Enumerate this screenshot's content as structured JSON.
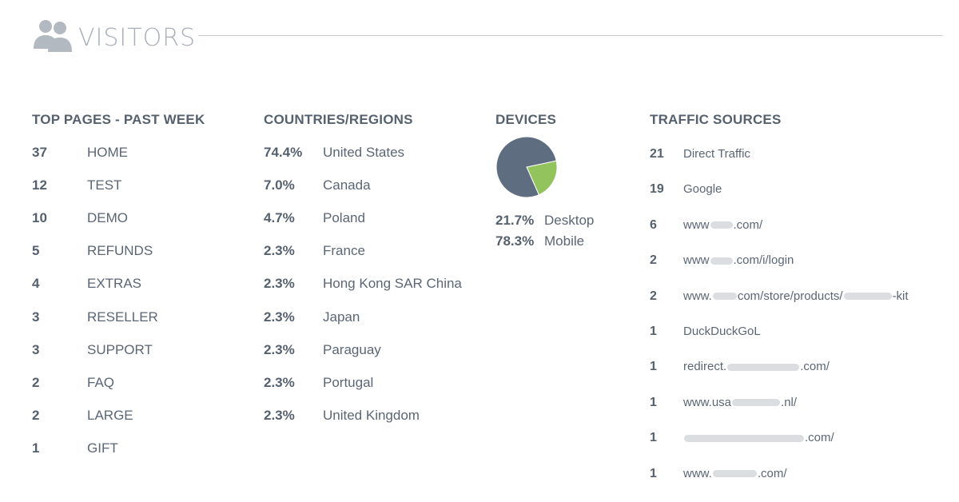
{
  "header": {
    "title": "VISITORS",
    "icon": "users-icon"
  },
  "top_pages": {
    "heading": "TOP PAGES - PAST WEEK",
    "items": [
      {
        "count": "37",
        "page": "HOME"
      },
      {
        "count": "12",
        "page": "TEST"
      },
      {
        "count": "10",
        "page": "DEMO"
      },
      {
        "count": "5",
        "page": "REFUNDS"
      },
      {
        "count": "4",
        "page": "EXTRAS"
      },
      {
        "count": "3",
        "page": "RESELLER"
      },
      {
        "count": "3",
        "page": "SUPPORT"
      },
      {
        "count": "2",
        "page": "FAQ"
      },
      {
        "count": "2",
        "page": "LARGE"
      },
      {
        "count": "1",
        "page": "GIFT"
      }
    ]
  },
  "countries": {
    "heading": "COUNTRIES/REGIONS",
    "items": [
      {
        "pct": "74.4%",
        "name": "United States"
      },
      {
        "pct": "7.0%",
        "name": "Canada"
      },
      {
        "pct": "4.7%",
        "name": "Poland"
      },
      {
        "pct": "2.3%",
        "name": "France"
      },
      {
        "pct": "2.3%",
        "name": "Hong Kong SAR China"
      },
      {
        "pct": "2.3%",
        "name": "Japan"
      },
      {
        "pct": "2.3%",
        "name": "Paraguay"
      },
      {
        "pct": "2.3%",
        "name": "Portugal"
      },
      {
        "pct": "2.3%",
        "name": "United Kingdom"
      }
    ]
  },
  "devices": {
    "heading": "DEVICES",
    "items": [
      {
        "pct": "21.7%",
        "name": "Desktop",
        "value": 21.7,
        "color": "#93c35c"
      },
      {
        "pct": "78.3%",
        "name": "Mobile",
        "value": 78.3,
        "color": "#5e6d80"
      }
    ]
  },
  "traffic": {
    "heading": "TRAFFIC SOURCES",
    "items": [
      {
        "count": "21",
        "parts": [
          "Direct Traffic"
        ]
      },
      {
        "count": "19",
        "parts": [
          "Google"
        ]
      },
      {
        "count": "6",
        "parts": [
          "www",
          ".com/"
        ]
      },
      {
        "count": "2",
        "parts": [
          "www",
          ".com/i/login"
        ]
      },
      {
        "count": "2",
        "parts": [
          "www.",
          "com/store/products/",
          "-kit"
        ]
      },
      {
        "count": "1",
        "parts": [
          "DuckDuckGoL"
        ]
      },
      {
        "count": "1",
        "parts": [
          "redirect.",
          ".com/"
        ]
      },
      {
        "count": "1",
        "parts": [
          "www.usa",
          ".nl/"
        ]
      },
      {
        "count": "1",
        "parts": [
          "",
          ".com/"
        ]
      },
      {
        "count": "1",
        "parts": [
          "www.",
          ".com/"
        ]
      }
    ]
  }
}
